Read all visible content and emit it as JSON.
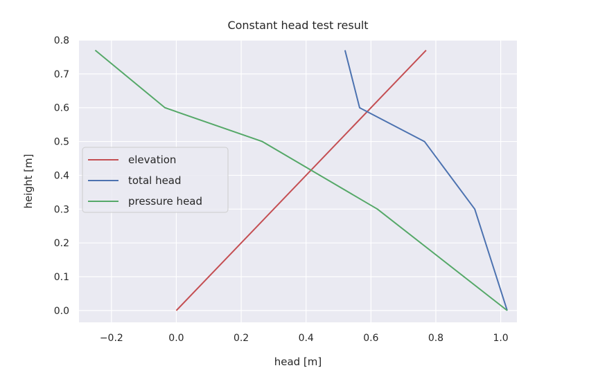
{
  "chart_data": {
    "type": "line",
    "title": "Constant head test result",
    "xlabel": "head [m]",
    "ylabel": "height [m]",
    "xlim": [
      -0.3,
      1.05
    ],
    "ylim": [
      -0.035,
      0.8
    ],
    "xticks": [
      "−0.2",
      "0.0",
      "0.2",
      "0.4",
      "0.6",
      "0.8",
      "1.0"
    ],
    "xtick_values": [
      -0.2,
      0,
      0.2,
      0.4,
      0.6,
      0.8,
      1.0
    ],
    "yticks": [
      "0.0",
      "0.1",
      "0.2",
      "0.3",
      "0.4",
      "0.5",
      "0.6",
      "0.7",
      "0.8"
    ],
    "ytick_values": [
      0,
      0.1,
      0.2,
      0.3,
      0.4,
      0.5,
      0.6,
      0.7,
      0.8
    ],
    "grid": true,
    "background": "#eaeaf2",
    "legend_position": "center-left",
    "series": [
      {
        "name": "elevation",
        "color": "#c44e52",
        "x": [
          0.0,
          0.77
        ],
        "y": [
          0.0,
          0.77
        ]
      },
      {
        "name": "total head",
        "color": "#4c72b0",
        "x": [
          1.02,
          0.92,
          0.765,
          0.565,
          0.52
        ],
        "y": [
          0.0,
          0.3,
          0.5,
          0.6,
          0.77
        ]
      },
      {
        "name": "pressure head",
        "color": "#55a868",
        "x": [
          1.02,
          0.62,
          0.265,
          -0.035,
          -0.25
        ],
        "y": [
          0.0,
          0.3,
          0.5,
          0.6,
          0.77
        ]
      }
    ]
  }
}
